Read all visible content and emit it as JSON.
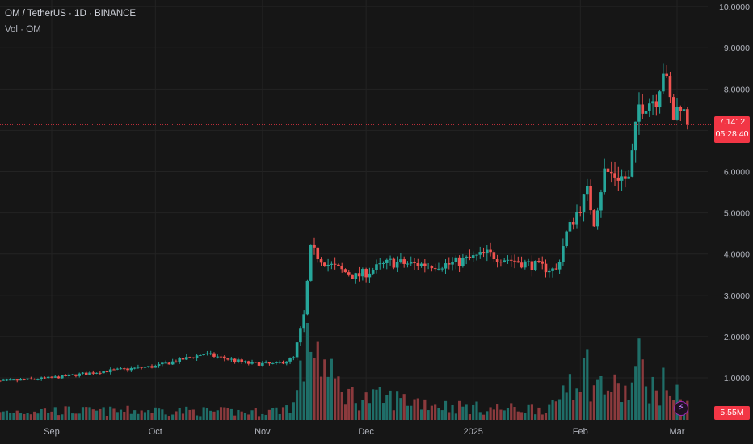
{
  "header": {
    "symbol_line": "OM / TetherUS · 1D · BINANCE",
    "volume_line": "Vol · OM"
  },
  "colors": {
    "up": "#26a69a",
    "down": "#ef5350",
    "up_vol": "#1f6e68",
    "down_vol": "#8b3a3d",
    "last_price": "#f23645"
  },
  "price_label": {
    "price": "7.1412",
    "countdown": "05:28:40"
  },
  "volume_label": "5.55M",
  "indicator_icon": "lightning-icon",
  "chart_data": {
    "type": "candlestick",
    "title": "OM / TetherUS · 1D · BINANCE",
    "y_ticks": [
      {
        "value": 10,
        "label": "10.0000"
      },
      {
        "value": 9,
        "label": "9.0000"
      },
      {
        "value": 8,
        "label": "8.0000"
      },
      {
        "value": 6,
        "label": "6.0000"
      },
      {
        "value": 5,
        "label": "5.0000"
      },
      {
        "value": 4,
        "label": "4.0000"
      },
      {
        "value": 3,
        "label": "3.0000"
      },
      {
        "value": 2,
        "label": "2.0000"
      },
      {
        "value": 1,
        "label": "1.0000"
      }
    ],
    "x_ticks": [
      {
        "date": "2024-09-01",
        "label": "Sep"
      },
      {
        "date": "2024-10-01",
        "label": "Oct"
      },
      {
        "date": "2024-11-01",
        "label": "Nov"
      },
      {
        "date": "2024-12-01",
        "label": "Dec"
      },
      {
        "date": "2025-01-01",
        "label": "2025"
      },
      {
        "date": "2025-02-01",
        "label": "Feb"
      },
      {
        "date": "2025-03-01",
        "label": "Mar"
      }
    ],
    "ylim": [
      0,
      10.3
    ],
    "last_price": 7.1412,
    "anchors": [
      {
        "date": "2024-08-13",
        "close": 0.9,
        "vol": 1.8
      },
      {
        "date": "2024-08-20",
        "close": 0.93,
        "vol": 2.0
      },
      {
        "date": "2024-09-01",
        "close": 1.0,
        "vol": 2.2
      },
      {
        "date": "2024-09-15",
        "close": 1.15,
        "vol": 2.0
      },
      {
        "date": "2024-10-01",
        "close": 1.28,
        "vol": 2.2
      },
      {
        "date": "2024-10-15",
        "close": 1.58,
        "vol": 2.0
      },
      {
        "date": "2024-10-28",
        "close": 1.35,
        "vol": 1.8
      },
      {
        "date": "2024-11-05",
        "close": 1.33,
        "vol": 2.2
      },
      {
        "date": "2024-11-10",
        "close": 1.48,
        "vol": 3.5
      },
      {
        "date": "2024-11-13",
        "close": 2.5,
        "vol": 14
      },
      {
        "date": "2024-11-15",
        "close": 4.1,
        "vol": 22
      },
      {
        "date": "2024-11-20",
        "close": 3.75,
        "vol": 10
      },
      {
        "date": "2024-11-28",
        "close": 3.45,
        "vol": 5
      },
      {
        "date": "2024-12-08",
        "close": 3.8,
        "vol": 5
      },
      {
        "date": "2024-12-15",
        "close": 3.75,
        "vol": 4.5
      },
      {
        "date": "2024-12-25",
        "close": 3.75,
        "vol": 3.2
      },
      {
        "date": "2025-01-05",
        "close": 4.0,
        "vol": 2.6
      },
      {
        "date": "2025-01-15",
        "close": 3.8,
        "vol": 2.6
      },
      {
        "date": "2025-01-25",
        "close": 3.6,
        "vol": 3.0
      },
      {
        "date": "2025-01-28",
        "close": 4.5,
        "vol": 10
      },
      {
        "date": "2025-02-03",
        "close": 5.5,
        "vol": 12
      },
      {
        "date": "2025-02-05",
        "close": 4.8,
        "vol": 8
      },
      {
        "date": "2025-02-08",
        "close": 6.0,
        "vol": 8
      },
      {
        "date": "2025-02-15",
        "close": 5.8,
        "vol": 6
      },
      {
        "date": "2025-02-18",
        "close": 7.6,
        "vol": 13
      },
      {
        "date": "2025-02-23",
        "close": 7.8,
        "vol": 6
      },
      {
        "date": "2025-02-25",
        "close": 8.5,
        "vol": 8
      },
      {
        "date": "2025-02-28",
        "close": 7.3,
        "vol": 7
      },
      {
        "date": "2025-03-02",
        "close": 7.7,
        "vol": 4
      },
      {
        "date": "2025-03-04",
        "close": 7.14,
        "vol": 5.55
      }
    ]
  }
}
